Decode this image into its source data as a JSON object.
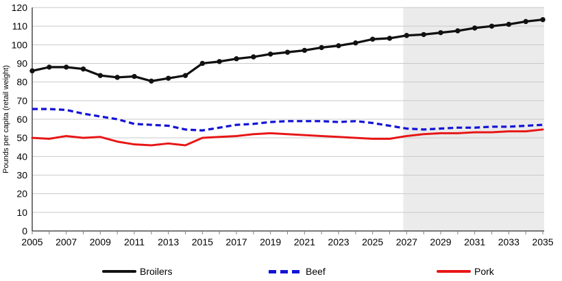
{
  "chart_data": {
    "type": "line",
    "title": "",
    "xlabel": "",
    "ylabel": "Pounds per capita (retail weight)",
    "ylim": [
      0,
      120
    ],
    "grid": true,
    "legend_position": "bottom",
    "x": [
      2005,
      2006,
      2007,
      2008,
      2009,
      2010,
      2011,
      2012,
      2013,
      2014,
      2015,
      2016,
      2017,
      2018,
      2019,
      2020,
      2021,
      2022,
      2023,
      2024,
      2025,
      2026,
      2027,
      2028,
      2029,
      2030,
      2031,
      2032,
      2033,
      2034,
      2035
    ],
    "x_tick_labels": [
      "2005",
      "2007",
      "2009",
      "2011",
      "2013",
      "2015",
      "2017",
      "2019",
      "2021",
      "2023",
      "2025",
      "2027",
      "2029",
      "2031",
      "2033",
      "2035"
    ],
    "y_tick_labels": [
      "0",
      "10",
      "20",
      "30",
      "40",
      "50",
      "60",
      "70",
      "80",
      "90",
      "100",
      "110",
      "120"
    ],
    "series": [
      {
        "name": "Broilers",
        "color": "#111111",
        "style": "solid",
        "markers": true,
        "values": [
          86,
          88,
          88,
          87,
          83.5,
          82.5,
          83,
          80.5,
          82,
          83.5,
          90,
          91,
          92.5,
          93.5,
          95,
          96,
          97,
          98.5,
          99.5,
          101,
          103,
          103.5,
          105,
          105.5,
          106.5,
          107.5,
          109,
          110,
          111,
          112.5,
          113.5
        ]
      },
      {
        "name": "Beef",
        "color": "#1414d6",
        "style": "dashed",
        "markers": false,
        "values": [
          65.5,
          65.5,
          65,
          63,
          61.5,
          60,
          57.5,
          57,
          56.5,
          54.5,
          54,
          55.5,
          57,
          57.5,
          58.5,
          59,
          59,
          59,
          58.5,
          59,
          58,
          56.5,
          55,
          54.5,
          55,
          55.5,
          55.5,
          56,
          56,
          56.5,
          57
        ]
      },
      {
        "name": "Pork",
        "color": "#e81616",
        "style": "solid",
        "markers": false,
        "values": [
          50,
          49.5,
          51,
          50,
          50.5,
          48,
          46.5,
          46,
          47,
          46,
          50,
          50.5,
          51,
          52,
          52.5,
          52,
          51.5,
          51,
          50.5,
          50,
          49.5,
          49.5,
          51,
          52,
          52.5,
          52.5,
          53,
          53,
          53.5,
          53.5,
          54.5
        ]
      }
    ],
    "projection_shading": {
      "start_year": 2027,
      "end_year": 2035,
      "color": "#ebebeb"
    },
    "gridline_color": "#c9c9c9",
    "axis_color": "#2b2b2b",
    "tick_color": "#7f7f7f"
  },
  "legend": {
    "items": [
      {
        "label": "Broilers"
      },
      {
        "label": "Beef"
      },
      {
        "label": "Pork"
      }
    ]
  }
}
